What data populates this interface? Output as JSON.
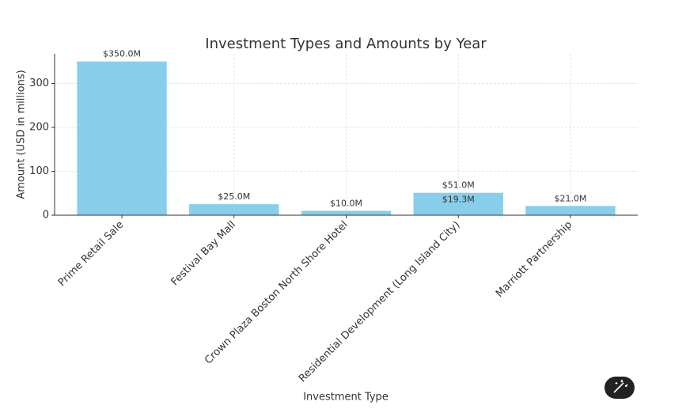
{
  "chart_data": {
    "type": "bar",
    "title": "Investment Types and Amounts by Year",
    "x_label": "Investment Type",
    "y_label": "Amount (USD in millions)",
    "categories": [
      "Prime Retail Sale",
      "Festival Bay Mall",
      "Crown Plaza Boston North Shore Hotel",
      "Residential Development (Long Island City)",
      "Marriott Partnership"
    ],
    "series": [
      {
        "color": "#87ceeb",
        "values": [
          350,
          25,
          10,
          51,
          21
        ],
        "value_labels": [
          "$350.0M",
          "$25.0M",
          "$10.0M",
          "$51.0M",
          "$21.0M"
        ]
      },
      {
        "color": "#87ceeb",
        "values": [
          null,
          null,
          null,
          19.3,
          null
        ],
        "value_labels": [
          null,
          null,
          null,
          "$19.3M",
          null
        ]
      }
    ],
    "ylim": [
      0,
      367.5
    ],
    "yticks": [
      0,
      100,
      200,
      300
    ],
    "grid": true
  }
}
